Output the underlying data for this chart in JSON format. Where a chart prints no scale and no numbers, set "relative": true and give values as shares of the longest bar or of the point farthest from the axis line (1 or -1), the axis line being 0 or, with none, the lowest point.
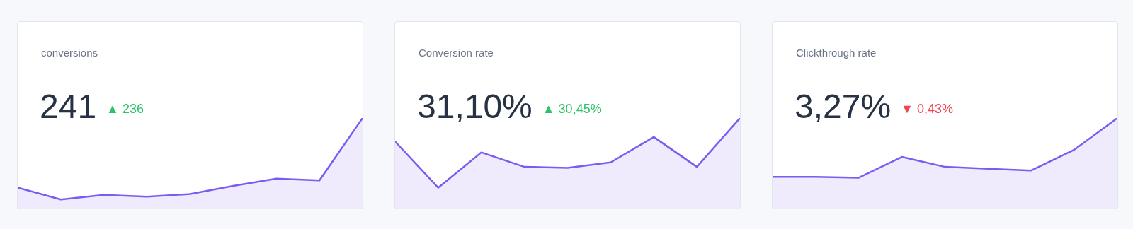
{
  "chart_data": [
    {
      "type": "area",
      "title": "conversions",
      "annotations": [
        "241",
        "▲ 236"
      ],
      "relative": true,
      "categories": [
        null,
        null,
        null,
        null,
        null,
        null,
        null,
        null,
        null
      ],
      "series": [
        {
          "color": "#7b5cf0",
          "values": [
            0.23,
            0.1,
            0.15,
            0.13,
            0.16,
            0.25,
            0.33,
            0.31,
            1
          ]
        }
      ]
    },
    {
      "type": "area",
      "title": "Conversion rate",
      "annotations": [
        "31,10%",
        "▲ 30,45%"
      ],
      "relative": true,
      "categories": [
        null,
        null,
        null,
        null,
        null,
        null,
        null,
        null,
        null
      ],
      "series": [
        {
          "color": "#7b5cf0",
          "values": [
            0.74,
            0.23,
            0.62,
            0.46,
            0.45,
            0.51,
            0.79,
            0.46,
            1
          ]
        }
      ]
    },
    {
      "type": "area",
      "title": "Clickthrough rate",
      "annotations": [
        "3,27%",
        "▼ 0,43%"
      ],
      "relative": true,
      "categories": [
        null,
        null,
        null,
        null,
        null,
        null,
        null,
        null,
        null
      ],
      "series": [
        {
          "color": "#7b5cf0",
          "values": [
            0.35,
            0.35,
            0.34,
            0.57,
            0.46,
            0.44,
            0.42,
            0.65,
            1
          ]
        }
      ]
    }
  ]
}
